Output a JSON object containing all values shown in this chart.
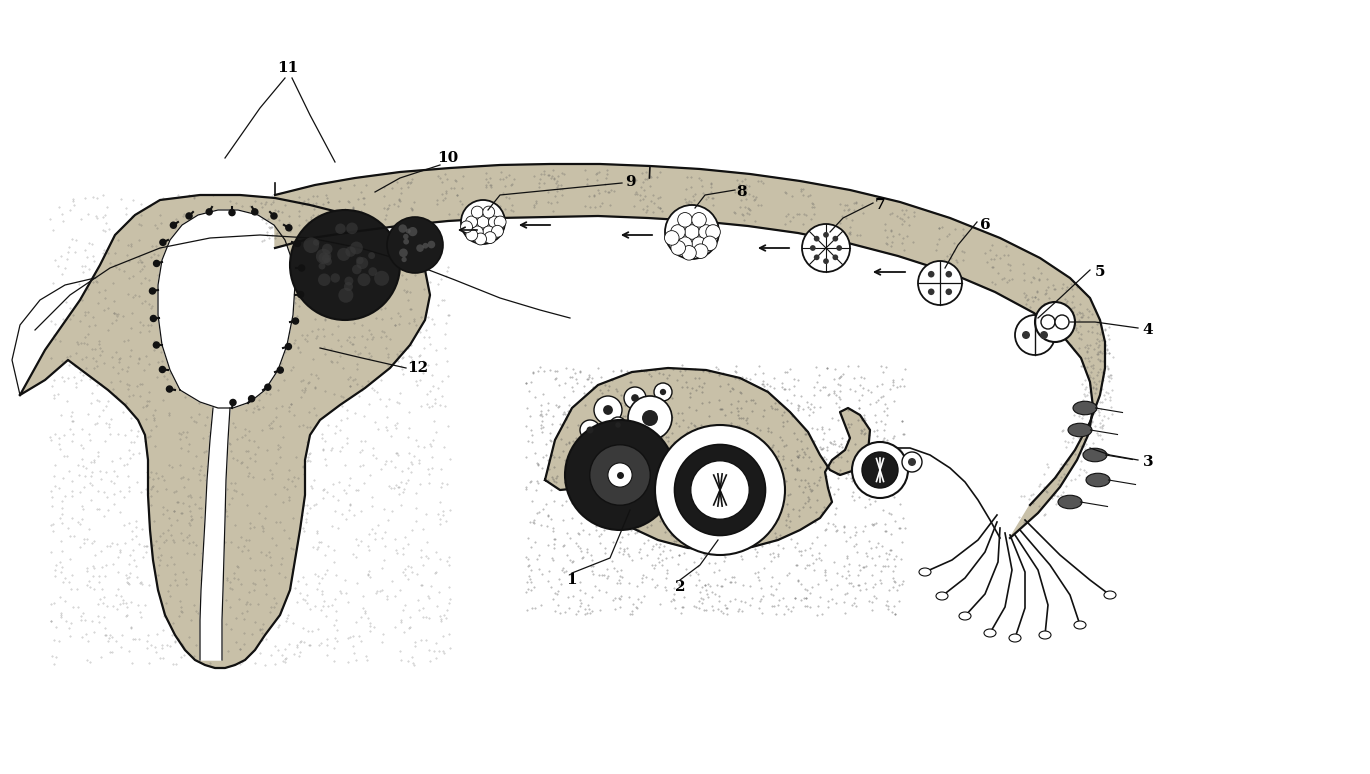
{
  "bg_color": "#ffffff",
  "line_color": "#111111",
  "fill_uterus": "#c8c0a8",
  "fill_tube": "#c8c0a8",
  "fill_ovary": "#c8c0a8",
  "label_fontsize": 11,
  "figw": 13.7,
  "figh": 7.74,
  "dpi": 100
}
